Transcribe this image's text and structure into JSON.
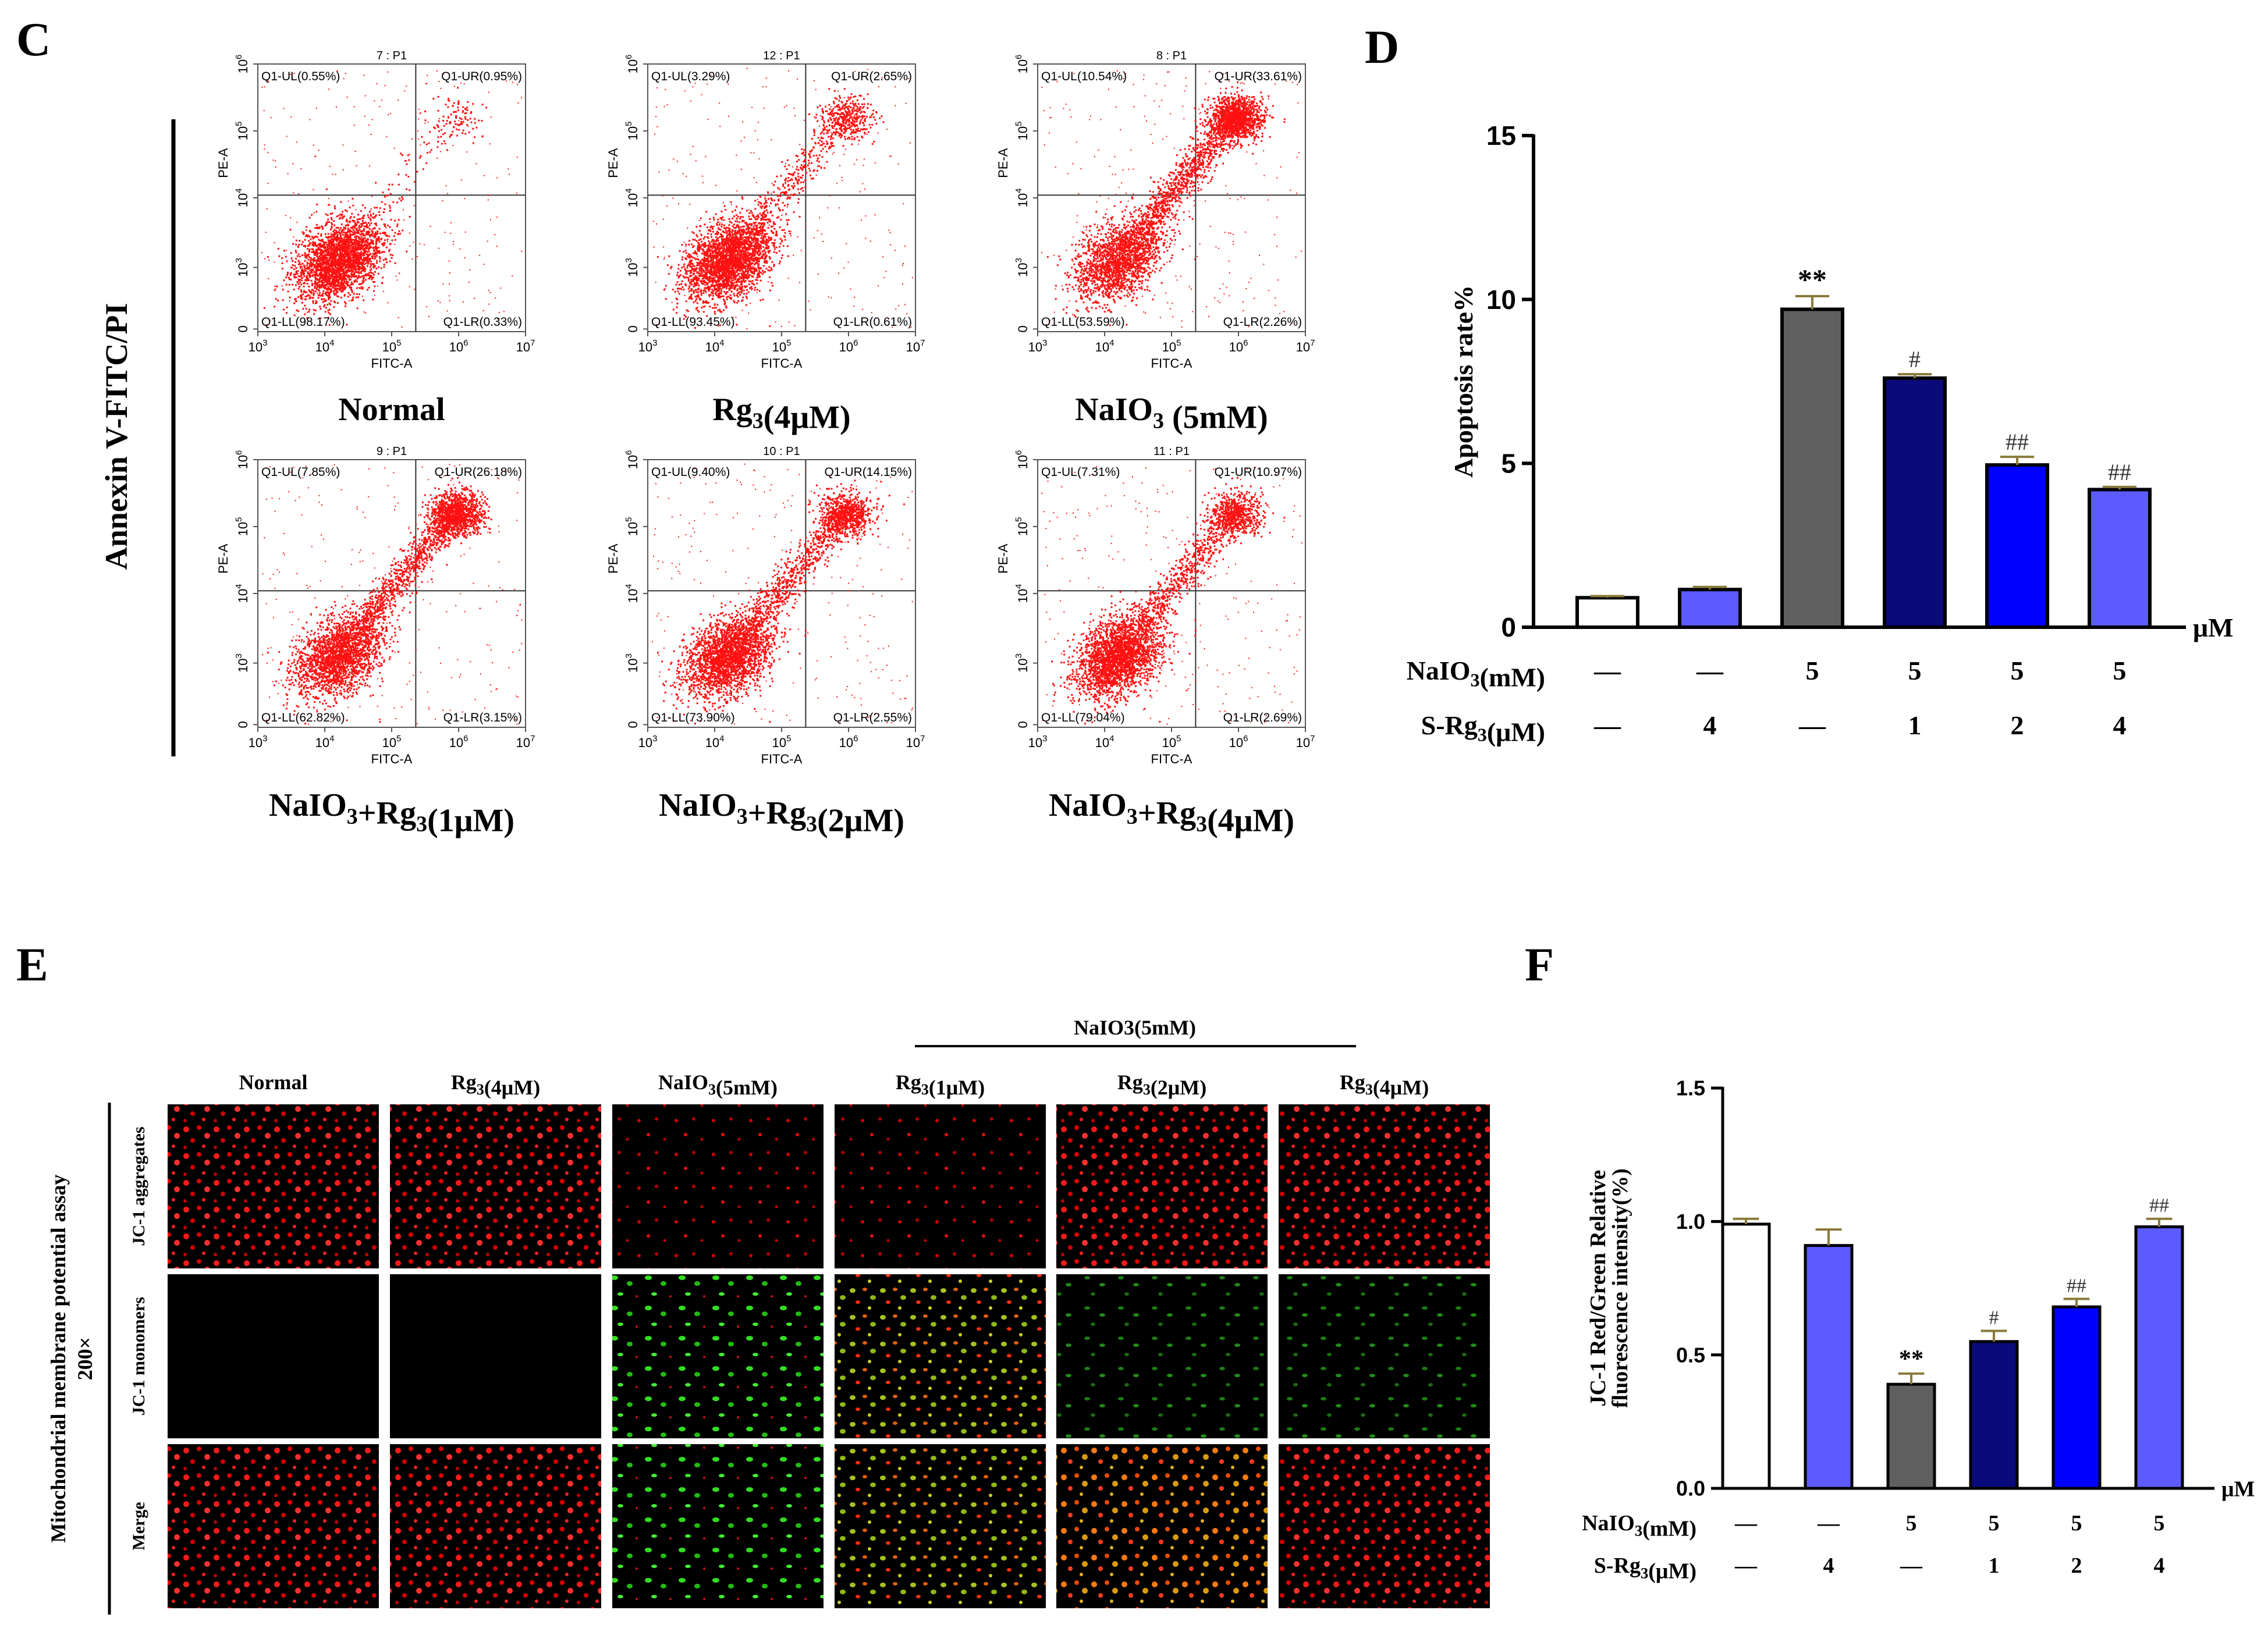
{
  "panels": {
    "C": "C",
    "D": "D",
    "E": "E",
    "F": "F"
  },
  "flow": {
    "ylabel": "Annexin V-FITC/PI",
    "x_axis_label": "FITC-A",
    "y_axis_label": "PE-A",
    "x_ticks": [
      "10",
      "10",
      "10",
      "10",
      "10"
    ],
    "x_tick_exp": [
      "3",
      "4",
      "5",
      "6",
      "7"
    ],
    "y_ticks": [
      "0",
      "10",
      "10",
      "10",
      "10"
    ],
    "y_tick_exp": [
      "",
      "3",
      "4",
      "5",
      "6"
    ],
    "plots": [
      {
        "header": "7 : P1",
        "label": "Normal",
        "ul": "Q1-UL(0.55%)",
        "ur": "Q1-UR(0.95%)",
        "ll": "Q1-LL(98.17%)",
        "lr": "Q1-LR(0.33%)"
      },
      {
        "header": "12 : P1",
        "label": "Rg3(4μM)",
        "ul": "Q1-UL(3.29%)",
        "ur": "Q1-UR(2.65%)",
        "ll": "Q1-LL(93.45%)",
        "lr": "Q1-LR(0.61%)"
      },
      {
        "header": "8 : P1",
        "label": "NaIO3 (5mM)",
        "ul": "Q1-UL(10.54%)",
        "ur": "Q1-UR(33.61%)",
        "ll": "Q1-LL(53.59%)",
        "lr": "Q1-LR(2.26%)"
      },
      {
        "header": "9 : P1",
        "label": "NaIO3+Rg3(1μM)",
        "ul": "Q1-UL(7.85%)",
        "ur": "Q1-UR(26.18%)",
        "ll": "Q1-LL(62.82%)",
        "lr": "Q1-LR(3.15%)"
      },
      {
        "header": "10 : P1",
        "label": "NaIO3+Rg3(2μM)",
        "ul": "Q1-UL(9.40%)",
        "ur": "Q1-UR(14.15%)",
        "ll": "Q1-LL(73.90%)",
        "lr": "Q1-LR(2.55%)"
      },
      {
        "header": "11 : P1",
        "label": "NaIO3+Rg3(4μM)",
        "ul": "Q1-UL(7.31%)",
        "ur": "Q1-UR(10.97%)",
        "ll": "Q1-LL(79.04%)",
        "lr": "Q1-LR(2.69%)"
      }
    ]
  },
  "microscopy": {
    "side_label": "Mitochondrial membrane potential assay",
    "magnification": "200×",
    "group_header": "NaIO3(5mM)",
    "columns": [
      "Normal",
      "Rg3(4μM)",
      "NaIO3(5mM)",
      "Rg3(1μM)",
      "Rg3(2μM)",
      "Rg3(4μM)"
    ],
    "rows": [
      "JC-1 aggregates",
      "JC-1 monomers",
      "Merge"
    ]
  },
  "chart_data": [
    {
      "type": "bar",
      "panel": "D",
      "ylabel": "Apoptosis rate%",
      "ylim": [
        0,
        15
      ],
      "yticks": [
        "0",
        "5",
        "10",
        "15"
      ],
      "unit": "μM",
      "values": [
        0.9,
        1.15,
        9.7,
        7.6,
        4.95,
        4.2
      ],
      "errors": [
        0.05,
        0.08,
        0.4,
        0.12,
        0.25,
        0.08
      ],
      "colors": [
        "#ffffff",
        "#5b5bff",
        "#5f5f5f",
        "#0a0a7a",
        "#0000ff",
        "#5b5bff"
      ],
      "annotations": [
        "",
        "",
        "**",
        "#",
        "##",
        "##"
      ],
      "row1_label": "NaIO3(mM)",
      "row1": [
        "—",
        "—",
        "5",
        "5",
        "5",
        "5"
      ],
      "row2_label": "S-Rg3(μM)",
      "row2": [
        "—",
        "4",
        "—",
        "1",
        "2",
        "4"
      ]
    },
    {
      "type": "bar",
      "panel": "F",
      "ylabel": "JC-1 Red/Green Relative fluorescence intensity(%)",
      "ylim": [
        0,
        1.5
      ],
      "yticks": [
        "0.0",
        "0.5",
        "1.0",
        "1.5"
      ],
      "unit": "μM",
      "values": [
        0.99,
        0.91,
        0.39,
        0.55,
        0.68,
        0.98
      ],
      "errors": [
        0.02,
        0.06,
        0.04,
        0.04,
        0.03,
        0.03
      ],
      "colors": [
        "#ffffff",
        "#5b5bff",
        "#5f5f5f",
        "#0a0a7a",
        "#0000ff",
        "#5b5bff"
      ],
      "annotations": [
        "",
        "",
        "**",
        "#",
        "##",
        "##"
      ],
      "row1_label": "NaIO3(mM)",
      "row1": [
        "—",
        "—",
        "5",
        "5",
        "5",
        "5"
      ],
      "row2_label": "S-Rg3(μM)",
      "row2": [
        "—",
        "4",
        "—",
        "1",
        "2",
        "4"
      ]
    }
  ]
}
